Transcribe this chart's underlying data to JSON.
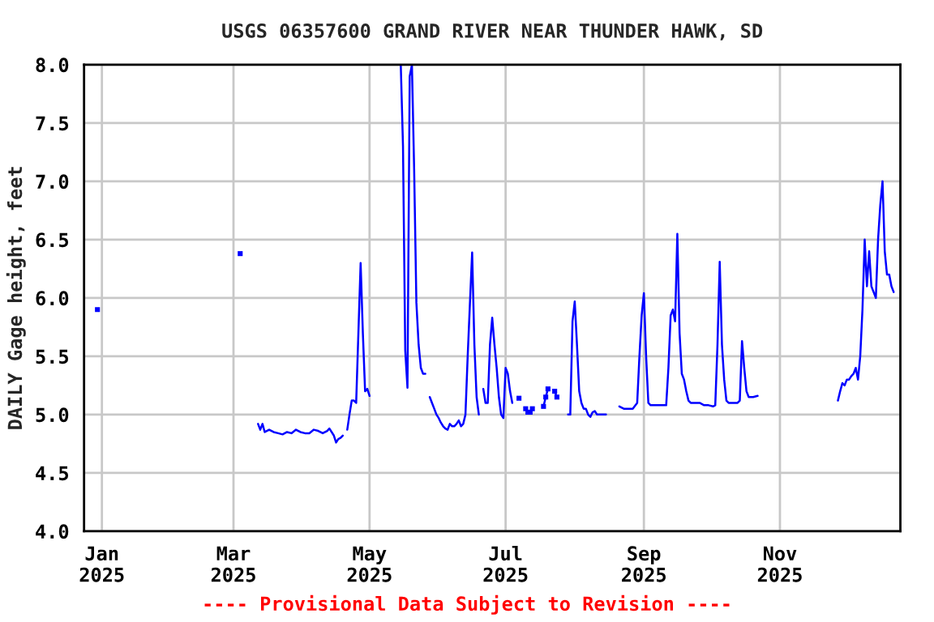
{
  "chart_data": {
    "type": "line",
    "title": "USGS 06357600 GRAND RIVER NEAR THUNDER HAWK, SD",
    "ylabel": "DAILY Gage height, feet",
    "annotations": [
      "---- Provisional Data Subject to Revision ----"
    ],
    "x": [
      "2025-03-12",
      "2025-03-13",
      "2025-03-14",
      "2025-03-15",
      "2025-03-17",
      "2025-03-19",
      "2025-03-21",
      "2025-03-23",
      "2025-03-25",
      "2025-03-27",
      "2025-03-29",
      "2025-03-31",
      "2025-04-02",
      "2025-04-04",
      "2025-04-06",
      "2025-04-08",
      "2025-04-10",
      "2025-04-12",
      "2025-04-13",
      "2025-04-15",
      "2025-04-16",
      "2025-04-17",
      "2025-04-18",
      "2025-04-19",
      "2025-04-20",
      "2025-04-21",
      "2025-04-22",
      "2025-04-23",
      "2025-04-24",
      "2025-04-25",
      "2025-04-26",
      "2025-04-27",
      "2025-04-28",
      "2025-04-29",
      "2025-04-30",
      "2025-05-01",
      "2025-05-02",
      "2025-05-15",
      "2025-05-16",
      "2025-05-17",
      "2025-05-18",
      "2025-05-19",
      "2025-05-20",
      "2025-05-21",
      "2025-05-22",
      "2025-05-23",
      "2025-05-24",
      "2025-05-25",
      "2025-05-26",
      "2025-05-27",
      "2025-05-28",
      "2025-05-29",
      "2025-05-30",
      "2025-05-31",
      "2025-06-01",
      "2025-06-02",
      "2025-06-03",
      "2025-06-04",
      "2025-06-05",
      "2025-06-06",
      "2025-06-07",
      "2025-06-08",
      "2025-06-09",
      "2025-06-10",
      "2025-06-11",
      "2025-06-12",
      "2025-06-13",
      "2025-06-14",
      "2025-06-15",
      "2025-06-16",
      "2025-06-17",
      "2025-06-18",
      "2025-06-19",
      "2025-06-20",
      "2025-06-21",
      "2025-06-22",
      "2025-06-23",
      "2025-06-24",
      "2025-06-25",
      "2025-06-26",
      "2025-06-27",
      "2025-06-28",
      "2025-06-29",
      "2025-06-30",
      "2025-07-01",
      "2025-07-02",
      "2025-07-03",
      "2025-07-04",
      "2025-07-05",
      "2025-07-29",
      "2025-07-30",
      "2025-07-31",
      "2025-08-01",
      "2025-08-02",
      "2025-08-03",
      "2025-08-04",
      "2025-08-05",
      "2025-08-06",
      "2025-08-07",
      "2025-08-08",
      "2025-08-09",
      "2025-08-10",
      "2025-08-11",
      "2025-08-13",
      "2025-08-15",
      "2025-08-16",
      "2025-08-21",
      "2025-08-23",
      "2025-08-25",
      "2025-08-27",
      "2025-08-29",
      "2025-08-30",
      "2025-08-31",
      "2025-09-01",
      "2025-09-02",
      "2025-09-03",
      "2025-09-04",
      "2025-09-06",
      "2025-09-08",
      "2025-09-10",
      "2025-09-11",
      "2025-09-12",
      "2025-09-13",
      "2025-09-14",
      "2025-09-15",
      "2025-09-16",
      "2025-09-17",
      "2025-09-18",
      "2025-09-19",
      "2025-09-20",
      "2025-09-21",
      "2025-09-22",
      "2025-09-24",
      "2025-09-26",
      "2025-09-28",
      "2025-09-30",
      "2025-10-02",
      "2025-10-03",
      "2025-10-04",
      "2025-10-05",
      "2025-10-06",
      "2025-10-07",
      "2025-10-08",
      "2025-10-09",
      "2025-10-11",
      "2025-10-13",
      "2025-10-14",
      "2025-10-15",
      "2025-10-16",
      "2025-10-17",
      "2025-10-18",
      "2025-10-20",
      "2025-10-22",
      "2025-10-23",
      "2025-11-27",
      "2025-11-28",
      "2025-11-29",
      "2025-11-30",
      "2025-12-01",
      "2025-12-02",
      "2025-12-03",
      "2025-12-04",
      "2025-12-05",
      "2025-12-06",
      "2025-12-07",
      "2025-12-08",
      "2025-12-09",
      "2025-12-10",
      "2025-12-11",
      "2025-12-12",
      "2025-12-13",
      "2025-12-14",
      "2025-12-15",
      "2025-12-16",
      "2025-12-17",
      "2025-12-18",
      "2025-12-19",
      "2025-12-20",
      "2025-12-21",
      "2025-12-22"
    ],
    "series": [
      {
        "color": "#0000ff",
        "values": [
          4.92,
          4.87,
          4.92,
          4.85,
          4.87,
          4.85,
          4.84,
          4.83,
          4.85,
          4.84,
          4.87,
          4.85,
          4.84,
          4.84,
          4.87,
          4.86,
          4.84,
          4.86,
          4.88,
          4.82,
          4.76,
          4.79,
          4.8,
          4.82,
          null,
          4.87,
          5.0,
          5.12,
          5.12,
          5.1,
          5.7,
          6.3,
          5.7,
          5.2,
          5.22,
          5.16,
          null,
          8.0,
          7.3,
          5.55,
          5.23,
          7.9,
          8.0,
          7.1,
          5.96,
          5.6,
          5.4,
          5.35,
          5.35,
          null,
          5.15,
          5.1,
          5.05,
          5.0,
          4.97,
          4.93,
          4.9,
          4.88,
          4.87,
          4.92,
          4.9,
          4.9,
          4.92,
          4.95,
          4.9,
          4.92,
          5.0,
          5.5,
          5.95,
          6.39,
          5.6,
          5.15,
          5.0,
          null,
          5.22,
          5.1,
          5.1,
          5.6,
          5.83,
          5.6,
          5.4,
          5.15,
          5.0,
          4.97,
          5.4,
          5.35,
          5.2,
          5.1,
          null,
          5.0,
          5.0,
          5.8,
          5.97,
          5.6,
          5.2,
          5.1,
          5.05,
          5.05,
          5.0,
          4.98,
          5.02,
          5.03,
          5.0,
          5.0,
          5.0,
          null,
          5.07,
          5.05,
          5.05,
          5.05,
          5.1,
          5.5,
          5.85,
          6.04,
          5.5,
          5.1,
          5.08,
          5.08,
          5.08,
          5.08,
          5.08,
          5.4,
          5.85,
          5.9,
          5.8,
          6.55,
          5.7,
          5.35,
          5.3,
          5.2,
          5.12,
          5.1,
          5.1,
          5.1,
          5.08,
          5.08,
          5.07,
          5.08,
          5.6,
          6.31,
          5.6,
          5.3,
          5.12,
          5.1,
          5.1,
          5.1,
          5.12,
          5.63,
          5.4,
          5.2,
          5.15,
          5.15,
          5.16,
          null,
          5.12,
          5.2,
          5.27,
          5.25,
          5.3,
          5.3,
          5.33,
          5.35,
          5.4,
          5.3,
          5.5,
          5.9,
          6.5,
          6.1,
          6.4,
          6.1,
          6.05,
          6.0,
          6.5,
          6.8,
          7.0,
          6.4,
          6.2,
          6.2,
          6.1,
          6.05
        ]
      },
      {
        "color": "#0000ff",
        "marker": "square",
        "x": [
          "2024-12-30",
          "2024-12-31",
          "2025-03-04",
          "2025-03-05",
          "2025-07-07",
          "2025-07-09",
          "2025-07-10",
          "2025-07-11",
          "2025-07-12",
          "2025-07-13",
          "2025-07-14",
          "2025-07-18",
          "2025-07-19",
          "2025-07-20",
          "2025-07-21",
          "2025-07-23",
          "2025-07-24"
        ],
        "values": [
          5.9,
          null,
          6.38,
          null,
          5.14,
          null,
          5.05,
          5.02,
          5.02,
          5.05,
          null,
          5.07,
          5.15,
          5.22,
          null,
          5.2,
          5.15
        ]
      }
    ],
    "xlim": [
      "2024-12-24",
      "2025-12-25"
    ],
    "xticks": [
      {
        "value": "2025-01-01",
        "label": "Jan\n2025"
      },
      {
        "value": "2025-03-01",
        "label": "Mar\n2025"
      },
      {
        "value": "2025-05-01",
        "label": "May\n2025"
      },
      {
        "value": "2025-07-01",
        "label": "Jul\n2025"
      },
      {
        "value": "2025-09-01",
        "label": "Sep\n2025"
      },
      {
        "value": "2025-11-01",
        "label": "Nov\n2025"
      }
    ],
    "ylim": [
      4.0,
      8.0
    ],
    "yticks": [
      {
        "value": 4,
        "label": "4.0"
      },
      4.5,
      {
        "value": 5,
        "label": "5.0"
      },
      5.5,
      {
        "value": 6,
        "label": "6.0"
      },
      6.5,
      {
        "value": 7,
        "label": "7.0"
      },
      7.5,
      {
        "value": 8,
        "label": "8.0"
      }
    ],
    "grid": true,
    "marker": "none",
    "line_style": "solid"
  }
}
